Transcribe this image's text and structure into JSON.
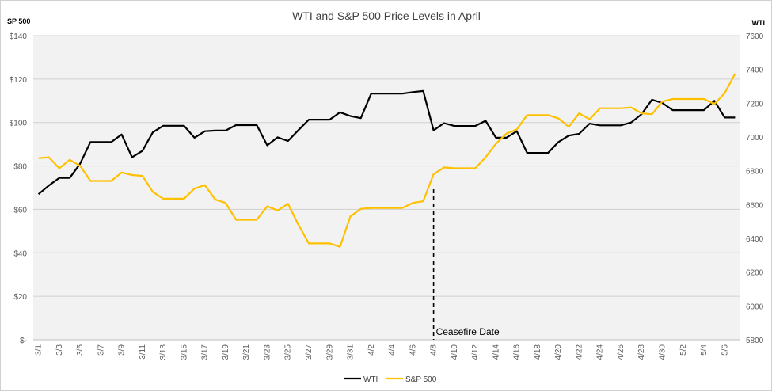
{
  "chart_data": {
    "type": "line",
    "title": "WTI and S&P 500 Price Levels in April",
    "left_axis_title": "SP 500",
    "right_axis_title": "WTI",
    "left_ticks": [
      "$140",
      "$120",
      "$100",
      "$80",
      "$60",
      "$40",
      "$20",
      "$-"
    ],
    "right_ticks": [
      "7600",
      "7400",
      "7200",
      "7000",
      "6800",
      "6600",
      "6400",
      "6200",
      "6000",
      "5800"
    ],
    "left_range": [
      0,
      140
    ],
    "right_range": [
      5800,
      7600
    ],
    "grid": true,
    "legend_position": "bottom",
    "categories": [
      "3/1",
      "3/2",
      "3/3",
      "3/4",
      "3/5",
      "3/6",
      "3/7",
      "3/8",
      "3/9",
      "3/10",
      "3/11",
      "3/12",
      "3/13",
      "3/14",
      "3/15",
      "3/16",
      "3/17",
      "3/18",
      "3/19",
      "3/20",
      "3/21",
      "3/22",
      "3/23",
      "3/24",
      "3/25",
      "3/26",
      "3/27",
      "3/28",
      "3/29",
      "3/30",
      "3/31",
      "4/1",
      "4/2",
      "4/3",
      "4/4",
      "4/5",
      "4/6",
      "4/7",
      "4/8",
      "4/9",
      "4/10",
      "4/11",
      "4/12",
      "4/13",
      "4/14",
      "4/15",
      "4/16",
      "4/17",
      "4/18",
      "4/19",
      "4/20",
      "4/21",
      "4/22",
      "4/23",
      "4/24",
      "4/25",
      "4/26",
      "4/27",
      "4/28",
      "4/29",
      "4/30",
      "5/1",
      "5/2",
      "5/3",
      "5/4",
      "5/5",
      "5/6",
      "5/7"
    ],
    "x_tick_labels": [
      "3/1",
      "3/3",
      "3/5",
      "3/7",
      "3/9",
      "3/11",
      "3/13",
      "3/15",
      "3/17",
      "3/19",
      "3/21",
      "3/23",
      "3/25",
      "3/27",
      "3/29",
      "3/31",
      "4/2",
      "4/4",
      "4/6",
      "4/8",
      "4/10",
      "4/12",
      "4/14",
      "4/16",
      "4/18",
      "4/20",
      "4/22",
      "4/24",
      "4/26",
      "4/28",
      "4/30",
      "5/2",
      "5/4",
      "5/6"
    ],
    "series": [
      {
        "name": "WTI",
        "color": "#000000",
        "axis": "left",
        "values": [
          67,
          71,
          74.5,
          74.5,
          81,
          91,
          91,
          91,
          94.5,
          84,
          87,
          95.5,
          98.5,
          98.5,
          98.5,
          93,
          96,
          96.3,
          96.3,
          98.8,
          98.8,
          98.8,
          89.5,
          93.2,
          91.5,
          96.5,
          101.3,
          101.3,
          101.3,
          104.7,
          103,
          102,
          113.3,
          113.3,
          113.3,
          113.3,
          114,
          114.5,
          96.4,
          99.7,
          98.4,
          98.4,
          98.4,
          100.8,
          93,
          93,
          96,
          86,
          86,
          86,
          91,
          94,
          94.8,
          99.5,
          98.7,
          98.7,
          98.7,
          100,
          103.8,
          110.5,
          109,
          105.7,
          105.7,
          105.7,
          105.7,
          110,
          102.3,
          102.3
        ]
      },
      {
        "name": "S&P 500",
        "color": "#FFC000",
        "axis": "right",
        "values": [
          6875,
          6880,
          6815,
          6865,
          6830,
          6740,
          6740,
          6740,
          6790,
          6775,
          6770,
          6675,
          6635,
          6635,
          6635,
          6695,
          6715,
          6630,
          6610,
          6510,
          6510,
          6510,
          6590,
          6565,
          6605,
          6480,
          6370,
          6370,
          6370,
          6350,
          6530,
          6575,
          6580,
          6580,
          6580,
          6580,
          6610,
          6620,
          6780,
          6820,
          6815,
          6815,
          6815,
          6880,
          6960,
          7020,
          7045,
          7130,
          7130,
          7130,
          7110,
          7060,
          7140,
          7105,
          7170,
          7170,
          7170,
          7175,
          7140,
          7135,
          7210,
          7225,
          7225,
          7225,
          7225,
          7195,
          7260,
          7375
        ]
      }
    ],
    "annotations": [
      {
        "text": "Ceasefire Date",
        "x": "4/8"
      }
    ]
  }
}
